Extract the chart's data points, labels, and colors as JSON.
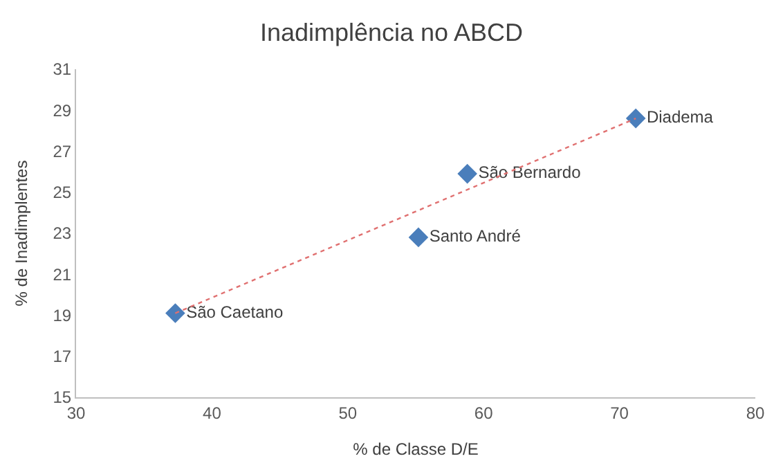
{
  "chart_data": {
    "type": "scatter",
    "title": "Inadimplência no ABCD",
    "xlabel": "% de Classe D/E",
    "ylabel": "% de Inadimplentes",
    "xlim": [
      30,
      80
    ],
    "xticks": [
      30,
      40,
      50,
      60,
      70,
      80
    ],
    "ylim": [
      15,
      31
    ],
    "yticks": [
      15,
      17,
      19,
      21,
      23,
      25,
      27,
      29,
      31
    ],
    "series": [
      {
        "marker": "diamond",
        "color": "#4a7ebb",
        "x": [
          37.3,
          55.2,
          58.8,
          71.2
        ],
        "values": [
          19.1,
          22.8,
          25.9,
          28.6
        ],
        "value_labels": [
          "São Caetano",
          "Santo André",
          "São Bernardo",
          "Diadema"
        ]
      },
      {
        "type": "line",
        "color": "#e07070",
        "line_style": "dotted",
        "x": [
          37.3,
          71.2
        ],
        "values": [
          19.1,
          28.6
        ]
      }
    ]
  }
}
